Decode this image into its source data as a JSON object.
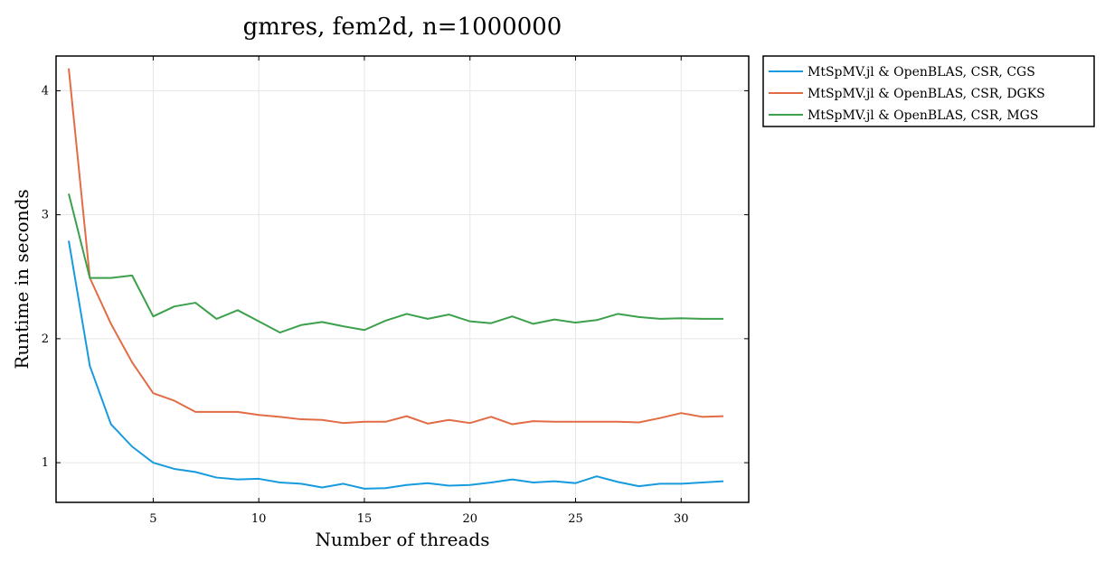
{
  "chart_data": {
    "type": "line",
    "title": "gmres, fem2d, n=1000000",
    "xlabel": "Number of threads",
    "ylabel": "Runtime in seconds",
    "xlim": [
      0.4,
      33.2
    ],
    "ylim": [
      0.68,
      4.28
    ],
    "xticks": [
      5,
      10,
      15,
      20,
      25,
      30
    ],
    "yticks": [
      1,
      2,
      3,
      4
    ],
    "grid": true,
    "legend_position": "outside-top-right",
    "x": [
      1,
      2,
      3,
      4,
      5,
      6,
      7,
      8,
      9,
      10,
      11,
      12,
      13,
      14,
      15,
      16,
      17,
      18,
      19,
      20,
      21,
      22,
      23,
      24,
      25,
      26,
      27,
      28,
      29,
      30,
      31,
      32
    ],
    "series": [
      {
        "name": "MtSpMV.jl & OpenBLAS, CSR, CGS",
        "color": "#179bde",
        "values": [
          2.79,
          1.78,
          1.31,
          1.13,
          1.0,
          0.95,
          0.925,
          0.88,
          0.865,
          0.87,
          0.84,
          0.83,
          0.8,
          0.83,
          0.79,
          0.795,
          0.82,
          0.835,
          0.815,
          0.82,
          0.84,
          0.865,
          0.84,
          0.85,
          0.835,
          0.89,
          0.845,
          0.81,
          0.83,
          0.83,
          0.84,
          0.85
        ]
      },
      {
        "name": "MtSpMV.jl & OpenBLAS, CSR, DGKS",
        "color": "#e16c45",
        "values": [
          4.18,
          2.49,
          2.12,
          1.81,
          1.56,
          1.5,
          1.41,
          1.41,
          1.41,
          1.385,
          1.37,
          1.35,
          1.345,
          1.32,
          1.33,
          1.33,
          1.375,
          1.315,
          1.345,
          1.32,
          1.37,
          1.31,
          1.335,
          1.33,
          1.33,
          1.33,
          1.33,
          1.325,
          1.36,
          1.4,
          1.37,
          1.375
        ]
      },
      {
        "name": "MtSpMV.jl & OpenBLAS, CSR, MGS",
        "color": "#3ca04c",
        "values": [
          3.17,
          2.49,
          2.49,
          2.51,
          2.18,
          2.26,
          2.29,
          2.16,
          2.23,
          2.14,
          2.05,
          2.11,
          2.135,
          2.1,
          2.07,
          2.145,
          2.2,
          2.16,
          2.195,
          2.14,
          2.125,
          2.18,
          2.12,
          2.155,
          2.13,
          2.15,
          2.2,
          2.175,
          2.16,
          2.165,
          2.16,
          2.16
        ]
      }
    ]
  }
}
